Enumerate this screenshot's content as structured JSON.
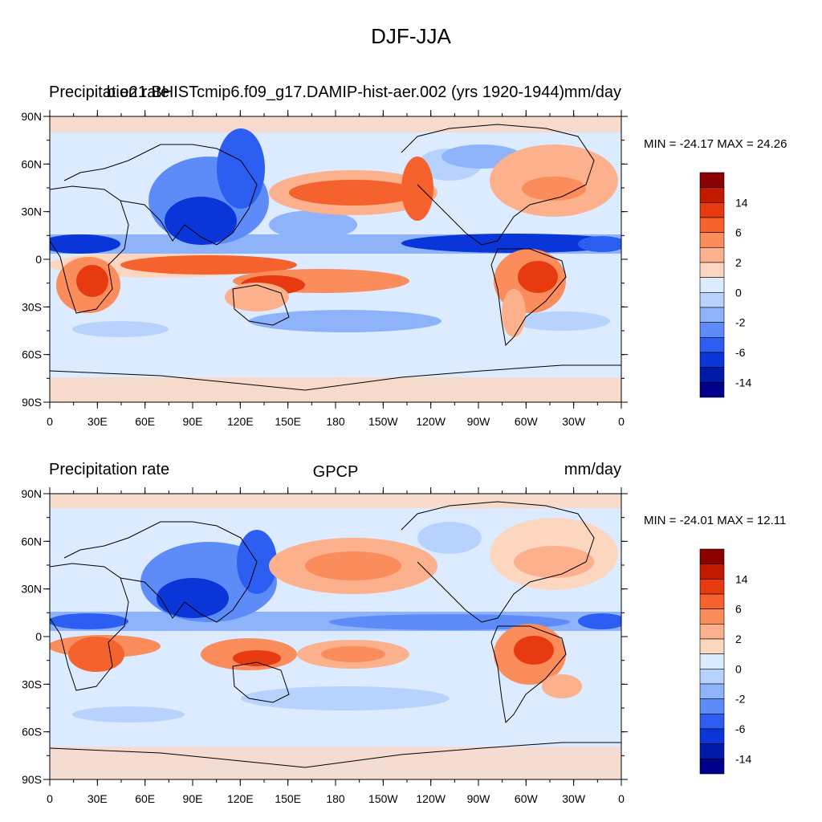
{
  "title": "DJF-JJA",
  "colorbar": {
    "labels": [
      "14",
      "6",
      "2",
      "0",
      "-2",
      "-6",
      "-14"
    ],
    "colors": [
      "#8b0000",
      "#c21a00",
      "#e83a10",
      "#f5622e",
      "#fb8c5c",
      "#fcb08c",
      "#fdd6bf",
      "#dcebff",
      "#b7d2fd",
      "#8fb3fb",
      "#5d8cf8",
      "#2d5ef2",
      "#0a35d8",
      "#001aa8",
      "#00008b"
    ]
  },
  "panels": [
    {
      "left_label": "Precipitation rate",
      "center_label": "b.e21.BHISTcmip6.f09_g17.DAMIP-hist-aer.002 (yrs 1920-1944)",
      "units": "mm/day",
      "min_label": "MIN = -24.17",
      "max_label": "MAX =  24.26"
    },
    {
      "left_label": "Precipitation rate",
      "center_label": "GPCP",
      "units": "mm/day",
      "min_label": "MIN = -24.01",
      "max_label": "MAX =  12.11"
    }
  ],
  "axes": {
    "lat_labels": [
      "90N",
      "60N",
      "30N",
      "0",
      "30S",
      "60S",
      "90S"
    ],
    "lon_labels": [
      "0",
      "30E",
      "60E",
      "90E",
      "120E",
      "150E",
      "180",
      "150W",
      "120W",
      "90W",
      "60W",
      "30W",
      "0"
    ]
  }
}
